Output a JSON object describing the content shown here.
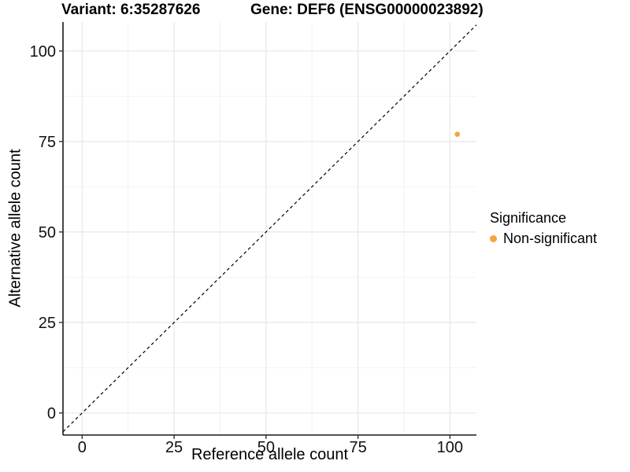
{
  "chart_data": {
    "type": "scatter",
    "title_left": "Variant: 6:35287626",
    "title_right": "Gene: DEF6 (ENSG00000023892)",
    "xlabel": "Reference allele count",
    "ylabel": "Alternative allele count",
    "x_ticks": [
      0,
      25,
      50,
      75,
      100
    ],
    "y_ticks": [
      0,
      25,
      50,
      75,
      100
    ],
    "x_minor_ticks": [
      12.5,
      37.5,
      62.5,
      87.5
    ],
    "y_minor_ticks": [
      12.5,
      37.5,
      62.5,
      87.5
    ],
    "xlim": [
      -5.2,
      107.2
    ],
    "ylim": [
      -6.1,
      108.0
    ],
    "grid": true,
    "points": [
      {
        "x": 102,
        "y": 77,
        "series": "Non-significant"
      }
    ],
    "identity_line": {
      "slope": 1,
      "intercept": 0,
      "style": "dashed"
    },
    "legend": {
      "position": "right",
      "title": "Significance",
      "items": [
        {
          "label": "Non-significant",
          "color": "#F9A242"
        }
      ]
    },
    "colors": {
      "point": "#F9A242",
      "major_grid": "#E7E7E7",
      "minor_grid": "#F2F2F2",
      "axis_line": "#1a1a1a",
      "tick_mark": "#333333",
      "tick_label": "#111111",
      "identity_line": "#000000",
      "background": "#ffffff"
    }
  }
}
